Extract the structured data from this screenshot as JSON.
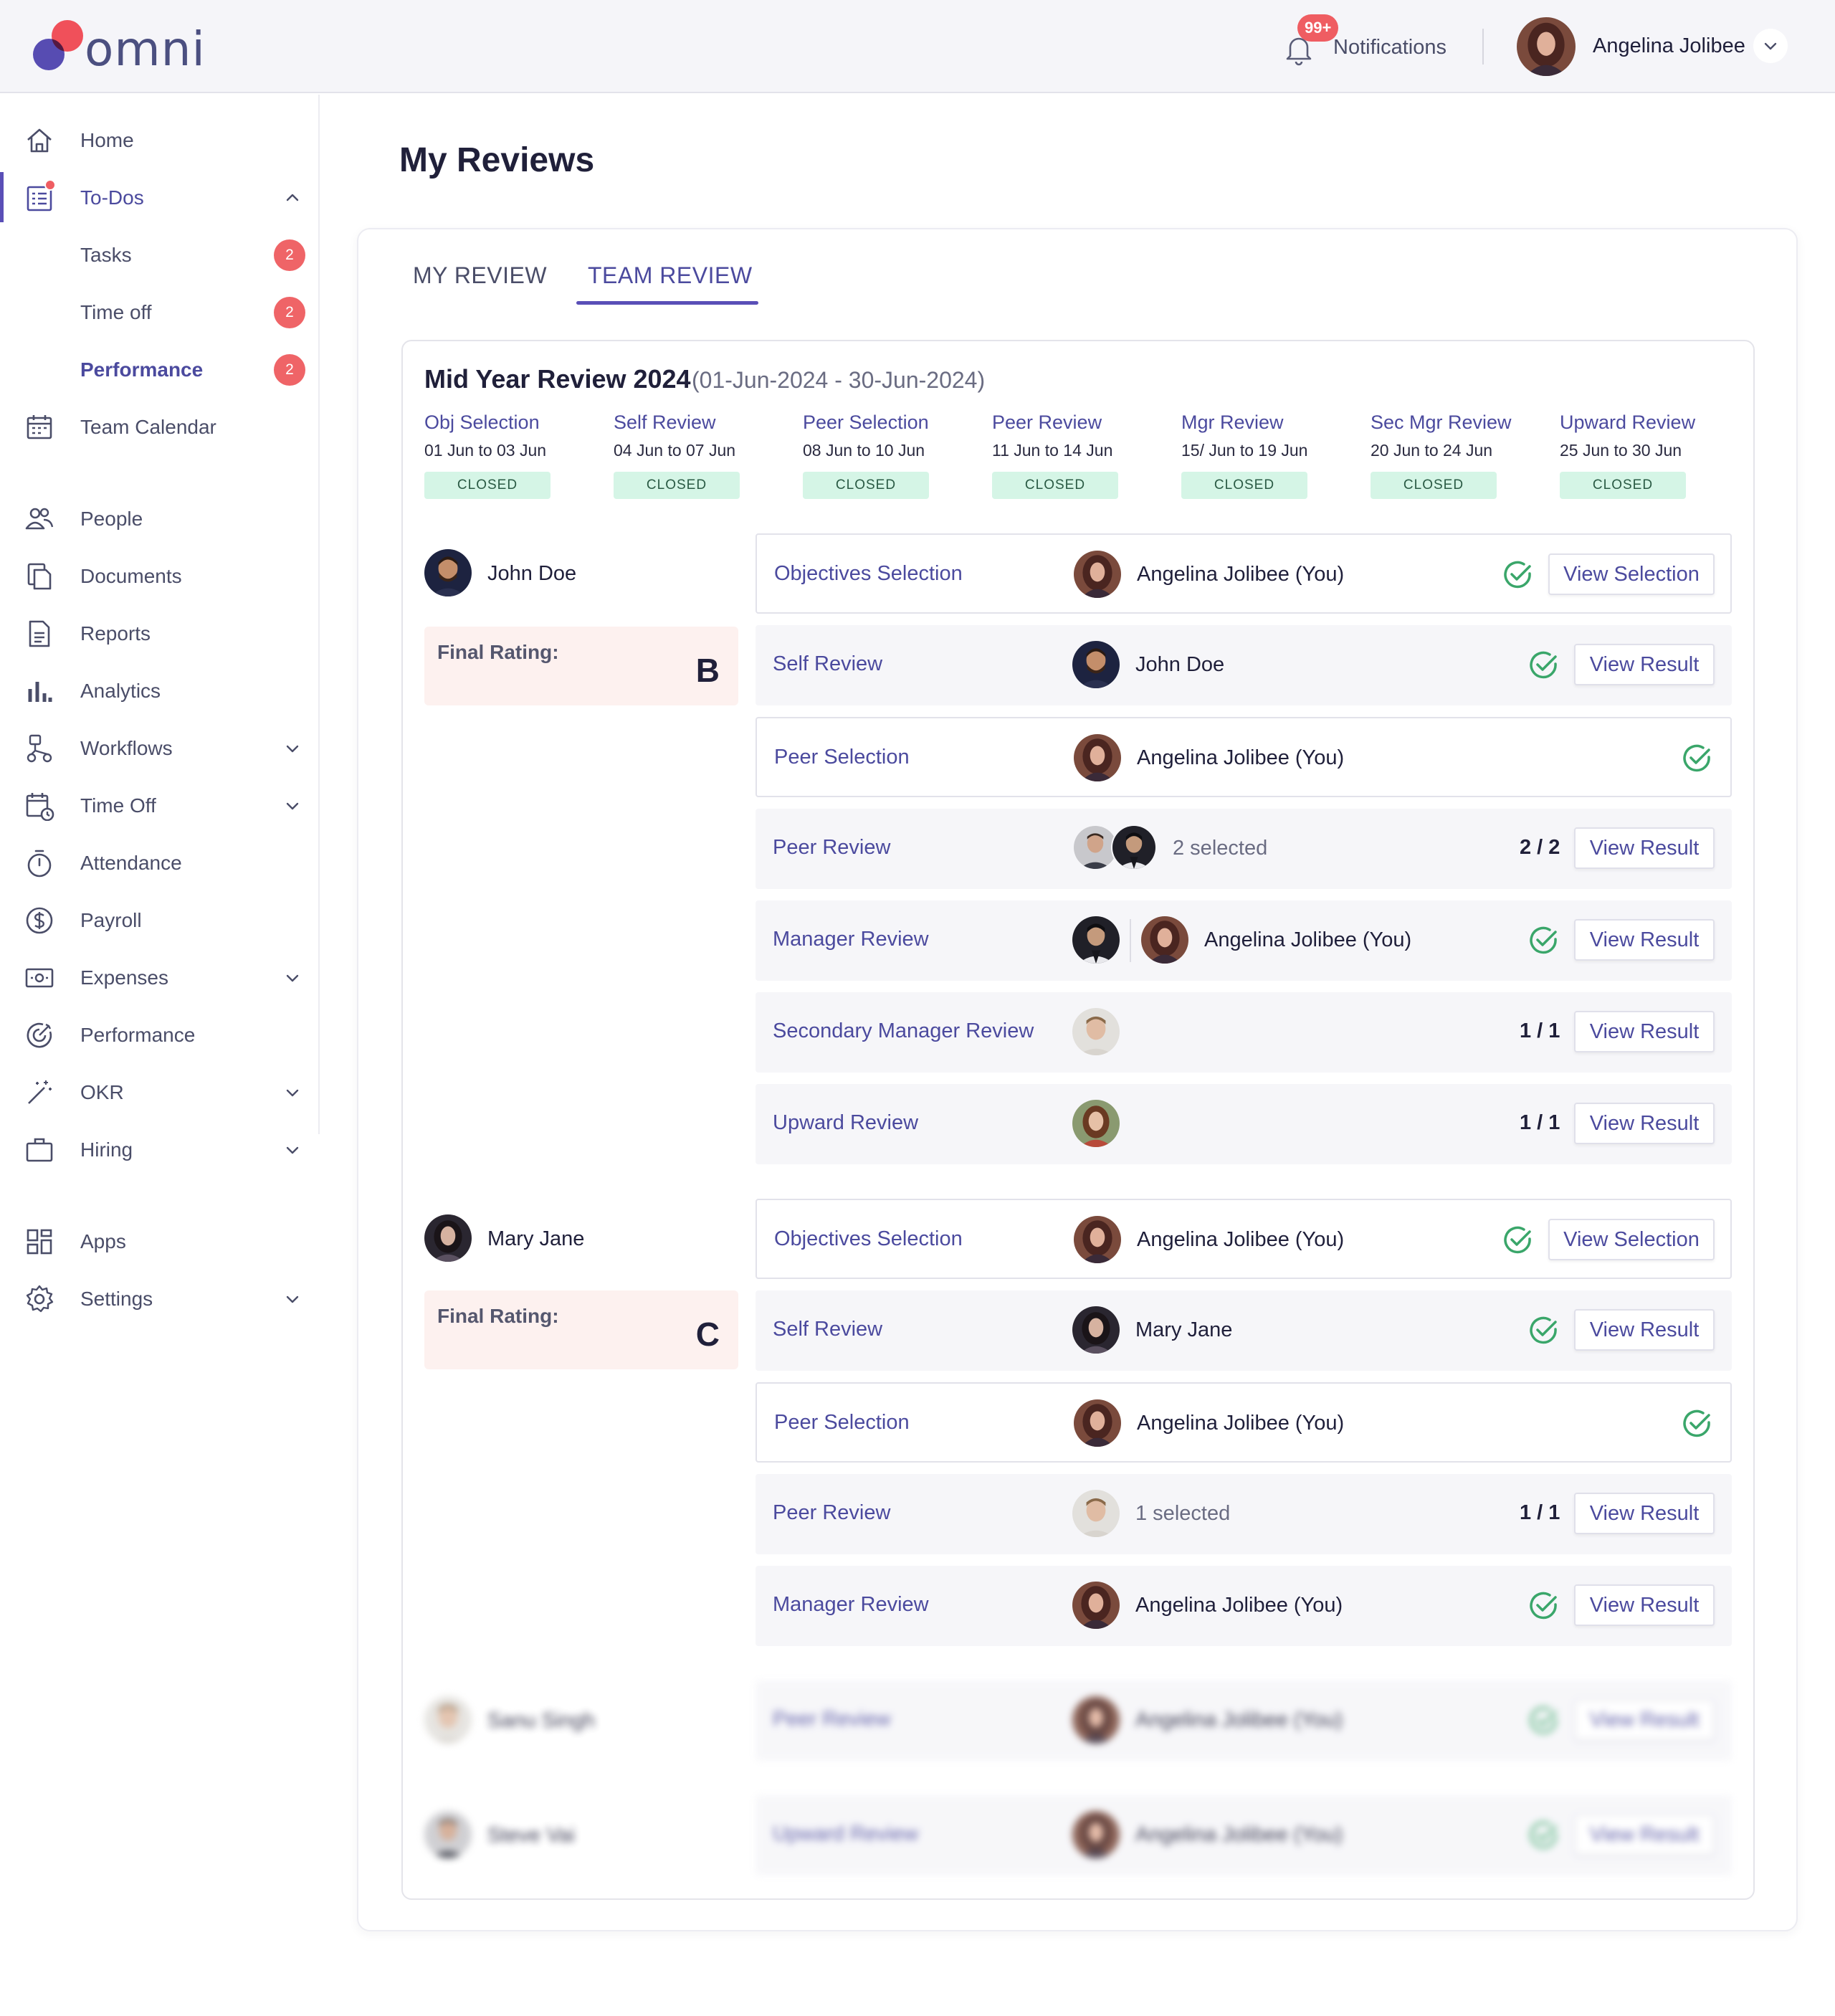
{
  "app": {
    "logo_text": "omni",
    "notifications": {
      "badge": "99+",
      "label": "Notifications"
    },
    "user": {
      "name": "Angelina Jolibee"
    }
  },
  "sidebar": {
    "home": "Home",
    "todos": "To-Dos",
    "todo_items": [
      {
        "label": "Tasks",
        "count": "2"
      },
      {
        "label": "Time off",
        "count": "2"
      },
      {
        "label": "Performance",
        "count": "2"
      }
    ],
    "team_calendar": "Team Calendar",
    "people": "People",
    "documents": "Documents",
    "reports": "Reports",
    "analytics": "Analytics",
    "workflows": "Workflows",
    "time_off": "Time Off",
    "attendance": "Attendance",
    "payroll": "Payroll",
    "expenses": "Expenses",
    "performance": "Performance",
    "okr": "OKR",
    "hiring": "Hiring",
    "apps": "Apps",
    "settings": "Settings"
  },
  "main": {
    "title": "My Reviews",
    "tabs": [
      "MY REVIEW",
      "TEAM REVIEW"
    ],
    "active_tab": "TEAM REVIEW",
    "review": {
      "name": "Mid Year Review 2024",
      "range": "(01-Jun-2024 - 30-Jun-2024)",
      "stages": [
        {
          "name": "Obj Selection",
          "dates": "01 Jun  to  03 Jun",
          "status": "CLOSED"
        },
        {
          "name": "Self Review",
          "dates": "04 Jun  to  07 Jun",
          "status": "CLOSED"
        },
        {
          "name": "Peer Selection",
          "dates": "08 Jun  to  10 Jun",
          "status": "CLOSED"
        },
        {
          "name": "Peer Review",
          "dates": "11 Jun  to  14 Jun",
          "status": "CLOSED"
        },
        {
          "name": "Mgr Review",
          "dates": "15/ Jun  to  19 Jun",
          "status": "CLOSED"
        },
        {
          "name": "Sec Mgr Review",
          "dates": "20 Jun  to  24 Jun",
          "status": "CLOSED"
        },
        {
          "name": "Upward Review",
          "dates": "25 Jun  to  30 Jun",
          "status": "CLOSED"
        }
      ]
    },
    "rating_label": "Final Rating:",
    "employees": [
      {
        "name": "John Doe",
        "rating": "B",
        "rows": [
          {
            "stage": "Objectives Selection",
            "person": "Angelina Jolibee (You)",
            "action": "View Selection"
          },
          {
            "stage": "Self Review",
            "person": "John Doe",
            "action": "View Result"
          },
          {
            "stage": "Peer Selection",
            "person": "Angelina Jolibee (You)"
          },
          {
            "stage": "Peer Review",
            "person": "2 selected",
            "fraction": "2 / 2",
            "action": "View Result"
          },
          {
            "stage": "Manager Review",
            "person": "Angelina Jolibee (You)",
            "action": "View Result"
          },
          {
            "stage": "Secondary Manager Review",
            "fraction": "1 / 1",
            "action": "View Result"
          },
          {
            "stage": "Upward Review",
            "fraction": "1 / 1",
            "action": "View Result"
          }
        ]
      },
      {
        "name": "Mary Jane",
        "rating": "C",
        "rows": [
          {
            "stage": "Objectives Selection",
            "person": "Angelina Jolibee (You)",
            "action": "View Selection"
          },
          {
            "stage": "Self Review",
            "person": "Mary Jane",
            "action": "View Result"
          },
          {
            "stage": "Peer Selection",
            "person": "Angelina Jolibee (You)"
          },
          {
            "stage": "Peer Review",
            "person": "1 selected",
            "fraction": "1 / 1",
            "action": "View Result"
          },
          {
            "stage": "Manager Review",
            "person": "Angelina Jolibee (You)",
            "action": "View Result"
          }
        ]
      },
      {
        "name": "Sanu Singh",
        "rows": [
          {
            "stage": "Peer Review",
            "person": "Angelina Jolibee (You)",
            "action": "View Result"
          }
        ]
      },
      {
        "name": "Steve Vai",
        "rows": [
          {
            "stage": "Upward Review",
            "person": "Angelina Jolibee (You)",
            "action": "View Result"
          }
        ]
      }
    ]
  },
  "colors": {
    "accent": "#4b4a9e",
    "check": "#3aa66a",
    "badge_red": "#ef6467",
    "closed_bg": "#d5f5e6",
    "rating_bg": "#fdf1ef"
  }
}
